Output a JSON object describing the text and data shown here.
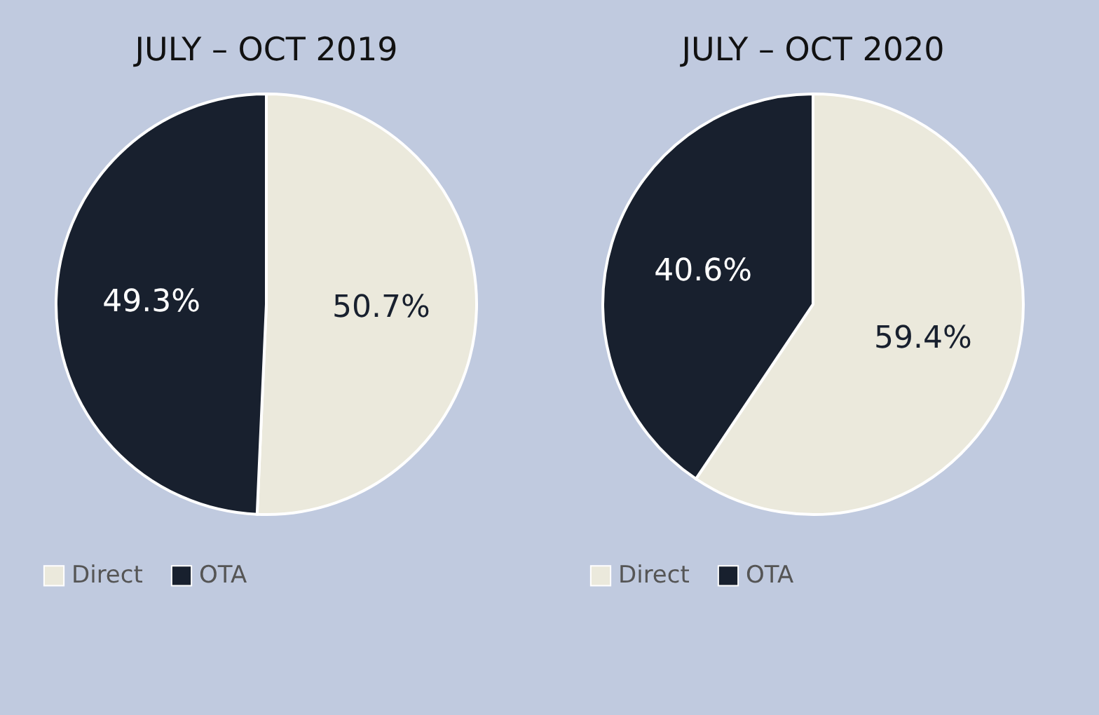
{
  "chart_data": [
    {
      "type": "pie",
      "title": "JULY – OCT 2019",
      "categories": [
        "Direct",
        "OTA"
      ],
      "values": [
        50.7,
        49.3
      ],
      "colors": [
        "#ebe9dc",
        "#18202e"
      ],
      "value_labels": [
        "50.7%",
        "49.3%"
      ],
      "legend": "bottom"
    },
    {
      "type": "pie",
      "title": "JULY – OCT 2020",
      "categories": [
        "Direct",
        "OTA"
      ],
      "values": [
        59.4,
        40.6
      ],
      "colors": [
        "#ebe9dc",
        "#18202e"
      ],
      "value_labels": [
        "59.4%",
        "40.6%"
      ],
      "legend": "bottom"
    }
  ]
}
